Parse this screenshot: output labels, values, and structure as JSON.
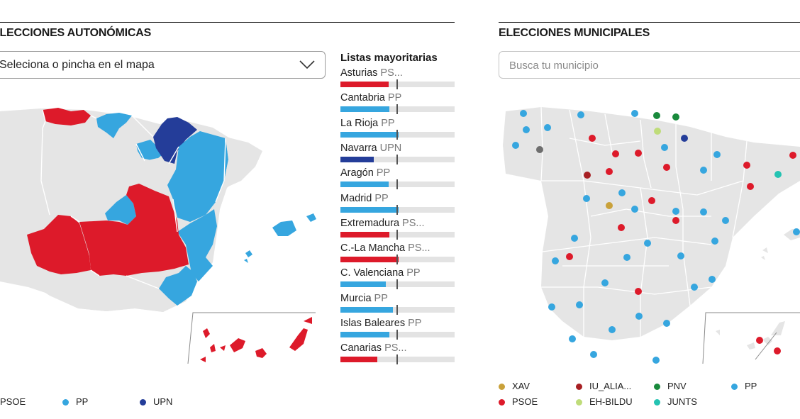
{
  "colors": {
    "psoe": "#dd1a2a",
    "pp": "#36a6df",
    "upn": "#243d99",
    "grey": "#e5e5e5",
    "xav": "#c9a13a",
    "iu": "#a71f23",
    "pnv": "#198a3c",
    "bildu": "#bfdc7a",
    "junts": "#24c3b2"
  },
  "autonomicas": {
    "title": "ELECCIONES AUTONÓMICAS",
    "select_value": "Seleciona o pincha en el mapa",
    "select_icon": "chevron-down-icon",
    "lists_title": "Listas mayoritarias",
    "regions": [
      {
        "name": "Asturias",
        "party": "PS...",
        "color": "#dd1a2a",
        "share": 0.42
      },
      {
        "name": "Cantabria",
        "party": "PP",
        "color": "#36a6df",
        "share": 0.43
      },
      {
        "name": "La Rioja",
        "party": "PP",
        "color": "#36a6df",
        "share": 0.51
      },
      {
        "name": "Navarra",
        "party": "UPN",
        "color": "#243d99",
        "share": 0.29
      },
      {
        "name": "Aragón",
        "party": "PP",
        "color": "#36a6df",
        "share": 0.42
      },
      {
        "name": "Madrid",
        "party": "PP",
        "color": "#36a6df",
        "share": 0.51
      },
      {
        "name": "Extremadura",
        "party": "PS...",
        "color": "#dd1a2a",
        "share": 0.43
      },
      {
        "name": "C.-La Mancha",
        "party": "PS...",
        "color": "#dd1a2a",
        "share": 0.51
      },
      {
        "name": "C. Valenciana",
        "party": "PP",
        "color": "#36a6df",
        "share": 0.4
      },
      {
        "name": "Murcia",
        "party": "PP",
        "color": "#36a6df",
        "share": 0.46
      },
      {
        "name": "Islas Baleares",
        "party": "PP",
        "color": "#36a6df",
        "share": 0.43
      },
      {
        "name": "Canarias",
        "party": "PS...",
        "color": "#dd1a2a",
        "share": 0.32
      }
    ],
    "legend": [
      {
        "label": "PSOE",
        "color": "#dd1a2a"
      },
      {
        "label": "PP",
        "color": "#36a6df"
      },
      {
        "label": "UPN",
        "color": "#243d99"
      }
    ]
  },
  "municipales": {
    "title": "ELECCIONES MUNICIPALES",
    "search_placeholder": "Busca tu municipio",
    "legend": [
      {
        "label": "XAV",
        "color": "#c9a13a"
      },
      {
        "label": "IU_ALIA...",
        "color": "#a71f23"
      },
      {
        "label": "PNV",
        "color": "#198a3c"
      },
      {
        "label": "PP",
        "color": "#36a6df"
      },
      {
        "label": "PSOE",
        "color": "#dd1a2a"
      },
      {
        "label": "EH-BILDU",
        "color": "#bfdc7a"
      },
      {
        "label": "JUNTS",
        "color": "#24c3b2"
      }
    ]
  }
}
